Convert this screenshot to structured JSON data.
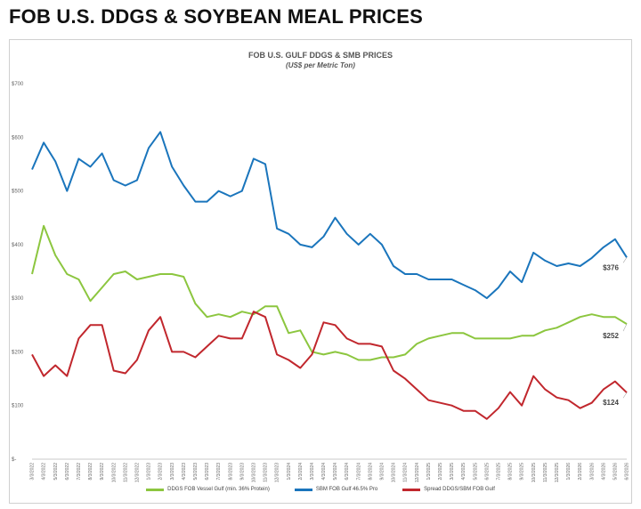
{
  "page": {
    "title": "FOB U.S. DDGS & SOYBEAN MEAL PRICES"
  },
  "chart_data": {
    "type": "line",
    "title": "FOB U.S. GULF DDGS & SMB PRICES",
    "subtitle": "(US$ per Metric Ton)",
    "xlabel": "",
    "ylabel": "",
    "ylim": [
      0,
      700
    ],
    "y_ticks": [
      "$-",
      "$100",
      "$200",
      "$300",
      "$400",
      "$500",
      "$600",
      "$700"
    ],
    "grid": false,
    "legend_position": "bottom",
    "x": [
      "3/3/2022",
      "4/3/2022",
      "5/3/2022",
      "6/3/2022",
      "7/3/2022",
      "8/3/2022",
      "9/3/2022",
      "10/3/2022",
      "11/3/2022",
      "12/3/2022",
      "1/3/2023",
      "2/3/2023",
      "3/3/2023",
      "4/3/2023",
      "5/3/2023",
      "6/3/2023",
      "7/3/2023",
      "8/3/2023",
      "9/3/2023",
      "10/3/2023",
      "11/3/2023",
      "12/3/2023",
      "1/3/2024",
      "2/3/2024",
      "3/3/2024",
      "4/3/2024",
      "5/3/2024",
      "6/3/2024",
      "7/3/2024",
      "8/3/2024",
      "9/3/2024",
      "10/3/2024",
      "11/3/2024",
      "12/3/2024",
      "1/3/2025",
      "2/3/2025",
      "3/3/2025",
      "4/3/2025",
      "5/3/2025",
      "6/3/2025",
      "7/3/2025",
      "8/3/2025",
      "9/3/2025",
      "10/3/2025",
      "11/3/2025",
      "12/3/2025",
      "1/3/2026",
      "2/3/2026",
      "3/3/2026",
      "4/3/2026",
      "5/3/2026",
      "6/3/2026"
    ],
    "series": [
      {
        "name": "DDGS FOB Vessel Gulf (min. 36% Protein)",
        "color": "#8cc63f",
        "values": [
          345,
          435,
          380,
          345,
          335,
          295,
          320,
          345,
          350,
          335,
          340,
          345,
          345,
          340,
          290,
          265,
          270,
          265,
          275,
          270,
          285,
          285,
          235,
          240,
          200,
          195,
          200,
          195,
          185,
          185,
          190,
          190,
          195,
          215,
          225,
          230,
          235,
          235,
          225,
          225,
          225,
          225,
          230,
          230,
          240,
          245,
          255,
          265,
          270,
          265,
          265,
          252
        ],
        "end_label": "$252"
      },
      {
        "name": "SBM FOB Gulf 46.5% Pro",
        "color": "#1a75bc",
        "values": [
          540,
          590,
          555,
          500,
          560,
          545,
          570,
          520,
          510,
          520,
          580,
          610,
          545,
          510,
          480,
          480,
          500,
          490,
          500,
          560,
          550,
          430,
          420,
          400,
          395,
          415,
          450,
          420,
          400,
          420,
          400,
          360,
          345,
          345,
          335,
          335,
          335,
          325,
          315,
          300,
          320,
          350,
          330,
          385,
          370,
          360,
          365,
          360,
          375,
          395,
          410,
          376
        ],
        "end_label": "$376"
      },
      {
        "name": "Spread DDGS/SBM FOB Gulf",
        "color": "#c1272d",
        "values": [
          195,
          155,
          175,
          155,
          225,
          250,
          250,
          165,
          160,
          185,
          240,
          265,
          200,
          200,
          190,
          210,
          230,
          225,
          225,
          275,
          265,
          195,
          185,
          170,
          195,
          255,
          250,
          225,
          215,
          215,
          210,
          165,
          150,
          130,
          110,
          105,
          100,
          90,
          90,
          75,
          95,
          125,
          100,
          155,
          130,
          115,
          110,
          95,
          105,
          130,
          145,
          124
        ],
        "end_label": "$124"
      }
    ]
  }
}
